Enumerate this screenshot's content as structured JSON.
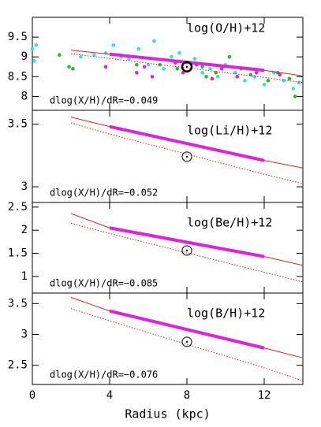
{
  "chart_data": [
    {
      "type": "line",
      "annotation": "log(O/H)+12",
      "gradient_label": "dlog(X/H)/dR=−0.049",
      "xlim": [
        0,
        14
      ],
      "xticks": [
        0,
        4,
        8,
        12
      ],
      "ylim": [
        7.65,
        10
      ],
      "yticks": [
        8,
        8.5,
        9,
        9.5
      ],
      "series": [
        {
          "marker": "dot",
          "color": "#33e0e8",
          "x": [
            0,
            0.2,
            0.1,
            2.5,
            3.2,
            3.8,
            4.2,
            4.6,
            5,
            5.5,
            6,
            6.3,
            6.8,
            7.2,
            7.6,
            8.4,
            8.8,
            9.2,
            9.6,
            10,
            10.5,
            11,
            11.5,
            12,
            12.5,
            13,
            13.5,
            13.8
          ],
          "values": [
            9.2,
            9.3,
            8.9,
            9.0,
            9.05,
            9.1,
            9.3,
            9.0,
            8.95,
            9.2,
            8.8,
            9.4,
            8.7,
            9.0,
            9.1,
            8.95,
            8.6,
            8.7,
            8.5,
            8.8,
            8.6,
            8.4,
            8.5,
            8.3,
            8.6,
            8.4,
            8.2,
            8.35
          ]
        },
        {
          "marker": "dot",
          "color": "#2fb82f",
          "x": [
            1.4,
            1.9,
            2.1,
            5.4,
            6.6,
            7.5,
            8.8,
            9,
            9.5,
            10.2,
            10.8,
            11.3,
            12.2,
            12.7,
            13.3,
            13.6
          ],
          "values": [
            9.05,
            8.75,
            8.7,
            8.8,
            8.8,
            8.7,
            8.75,
            8.5,
            8.6,
            9.0,
            8.7,
            8.55,
            8.4,
            8.6,
            8.45,
            8.0
          ]
        },
        {
          "marker": "dot",
          "color": "#e020e0",
          "x": [
            3.8,
            5.4,
            5.8,
            6.2,
            7.4,
            7.8,
            8.5,
            9.3,
            9.8,
            10.6,
            11.6,
            12.8
          ],
          "values": [
            8.75,
            8.6,
            8.75,
            8.5,
            8.85,
            8.6,
            8.8,
            8.45,
            8.7,
            8.5,
            8.6,
            8.55
          ]
        },
        {
          "style": "dotted",
          "color": "#e02020",
          "width": 1,
          "x": [
            2,
            4,
            6,
            8,
            10,
            12,
            14
          ],
          "values": [
            9.08,
            8.96,
            8.84,
            8.72,
            8.6,
            8.48,
            8.35
          ]
        },
        {
          "style": "solid",
          "color": "#e02020",
          "width": 1,
          "x": [
            2,
            4,
            6,
            8,
            10,
            12,
            14
          ],
          "values": [
            9.17,
            9.07,
            8.97,
            8.87,
            8.77,
            8.66,
            8.52
          ]
        },
        {
          "style": "solid",
          "color": "#e020e0",
          "width": 4,
          "x": [
            4,
            12
          ],
          "values": [
            9.07,
            8.66
          ]
        },
        {
          "marker": "sun",
          "color": "#000000",
          "x": [
            8
          ],
          "values": [
            8.75
          ]
        }
      ]
    },
    {
      "type": "line",
      "annotation": "log(Li/H)+12",
      "gradient_label": "dlog(X/H)/dR=−0.052",
      "xlim": [
        0,
        14
      ],
      "xticks": [
        0,
        4,
        8,
        12
      ],
      "ylim": [
        2.875,
        3.61
      ],
      "yticks": [
        3,
        3.5
      ],
      "series": [
        {
          "style": "dotted",
          "color": "#e02020",
          "width": 1,
          "x": [
            2,
            4,
            6,
            8,
            10,
            12,
            14
          ],
          "values": [
            3.51,
            3.42,
            3.34,
            3.26,
            3.18,
            3.1,
            3.025
          ]
        },
        {
          "style": "solid",
          "color": "#e02020",
          "width": 1,
          "x": [
            2,
            4,
            6,
            8,
            10,
            12,
            14
          ],
          "values": [
            3.556,
            3.48,
            3.41,
            3.34,
            3.275,
            3.21,
            3.15
          ]
        },
        {
          "style": "solid",
          "color": "#e020e0",
          "width": 4,
          "x": [
            4,
            12
          ],
          "values": [
            3.48,
            3.21
          ]
        },
        {
          "marker": "sun",
          "color": "#000000",
          "x": [
            8
          ],
          "values": [
            3.24
          ]
        }
      ]
    },
    {
      "type": "line",
      "annotation": "log(Be/H)+12",
      "gradient_label": "dlog(X/H)/dR=−0.085",
      "xlim": [
        0,
        14
      ],
      "xticks": [
        0,
        4,
        8,
        12
      ],
      "ylim": [
        0.64,
        2.6
      ],
      "yticks": [
        1,
        1.5,
        2,
        2.5
      ],
      "series": [
        {
          "style": "dotted",
          "color": "#e02020",
          "width": 1,
          "x": [
            2,
            4,
            6,
            8,
            10,
            12,
            14
          ],
          "values": [
            2.15,
            1.93,
            1.72,
            1.51,
            1.3,
            1.09,
            0.88
          ]
        },
        {
          "style": "solid",
          "color": "#e02020",
          "width": 1,
          "x": [
            2,
            4,
            6,
            8,
            10,
            12,
            14
          ],
          "values": [
            2.36,
            2.05,
            1.9,
            1.74,
            1.59,
            1.43,
            1.24
          ]
        },
        {
          "style": "solid",
          "color": "#e020e0",
          "width": 4,
          "x": [
            4,
            12
          ],
          "values": [
            2.05,
            1.43
          ]
        },
        {
          "marker": "sun",
          "color": "#000000",
          "x": [
            8
          ],
          "values": [
            1.56
          ]
        }
      ]
    },
    {
      "type": "line",
      "annotation": "log(B/H)+12",
      "gradient_label": "dlog(X/H)/dR=−0.076",
      "xlim": [
        0,
        14
      ],
      "xticks": [
        0,
        4,
        8,
        12
      ],
      "ylim": [
        2.19,
        3.67
      ],
      "yticks": [
        2.5,
        3,
        3.5
      ],
      "xlabel": "Radius (kpc)",
      "series": [
        {
          "style": "dotted",
          "color": "#e02020",
          "width": 1,
          "x": [
            2,
            4,
            6,
            8,
            10,
            12,
            14
          ],
          "values": [
            3.42,
            3.22,
            3.03,
            2.84,
            2.65,
            2.46,
            2.25
          ]
        },
        {
          "style": "solid",
          "color": "#e02020",
          "width": 1,
          "x": [
            2,
            4,
            6,
            8,
            10,
            12,
            14
          ],
          "values": [
            3.6,
            3.38,
            3.22,
            3.08,
            2.93,
            2.78,
            2.62
          ]
        },
        {
          "style": "solid",
          "color": "#e020e0",
          "width": 4,
          "x": [
            4,
            12
          ],
          "values": [
            3.38,
            2.78
          ]
        },
        {
          "marker": "sun",
          "color": "#000000",
          "x": [
            8
          ],
          "values": [
            2.88
          ]
        }
      ]
    }
  ]
}
